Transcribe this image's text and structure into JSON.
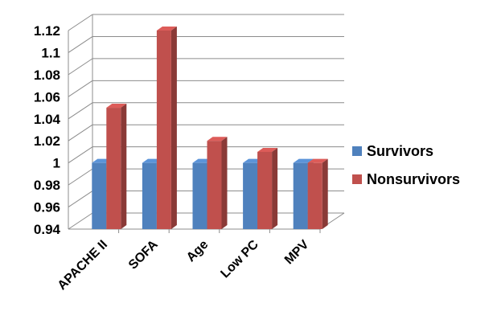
{
  "chart_data": {
    "type": "bar",
    "categories": [
      "APACHE II",
      "SOFA",
      "Age",
      "Low PC",
      "MPV"
    ],
    "series": [
      {
        "name": "Survivors",
        "values": [
          1.0,
          1.0,
          1.0,
          1.0,
          1.0
        ],
        "color": "#4F81BD"
      },
      {
        "name": "Nonsurvivors",
        "values": [
          1.05,
          1.12,
          1.02,
          1.01,
          1.0
        ],
        "color": "#C0504D"
      }
    ],
    "ylim": [
      0.94,
      1.12
    ],
    "yticks": [
      "0.94",
      "0.96",
      "0.98",
      "1",
      "1.02",
      "1.04",
      "1.06",
      "1.08",
      "1.1",
      "1.12"
    ],
    "grid": true,
    "legend_position": "right",
    "style": "3d-clustered-bar",
    "title": "",
    "xlabel": "",
    "ylabel": ""
  }
}
